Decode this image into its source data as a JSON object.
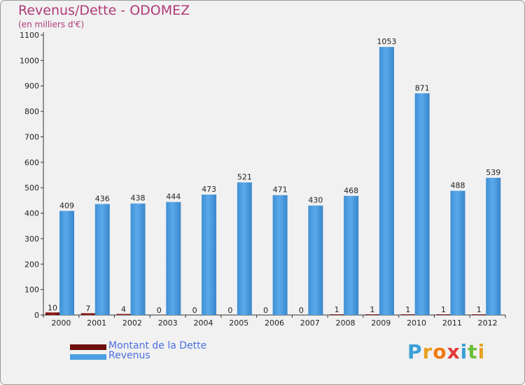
{
  "title": "Revenus/Dette - ODOMEZ",
  "subtitle": "(en milliers d'€)",
  "colors": {
    "debt": "#7a1010",
    "revenue": "#4c9fe0",
    "title": "#b03a78",
    "legend_text": "#4a6ee0"
  },
  "legend": [
    {
      "label": "Montant de la Dette",
      "color": "#6e0d0d"
    },
    {
      "label": "Revenus",
      "color": "#4c9fe0"
    }
  ],
  "logo": {
    "letters": [
      "P",
      "r",
      "o",
      "x",
      "i",
      "t",
      "i"
    ]
  },
  "chart_data": {
    "type": "bar",
    "title": "Revenus/Dette - ODOMEZ",
    "ylabel": "(en milliers d'€)",
    "xlabel": "",
    "ylim": [
      0,
      1100
    ],
    "yticks": [
      0,
      100,
      200,
      300,
      400,
      500,
      600,
      700,
      800,
      900,
      1000,
      1100
    ],
    "grid": false,
    "legend_position": "bottom-left",
    "categories": [
      "2000",
      "2001",
      "2002",
      "2003",
      "2004",
      "2005",
      "2006",
      "2007",
      "2008",
      "2009",
      "2010",
      "2011",
      "2012"
    ],
    "series": [
      {
        "name": "Montant de la Dette",
        "values": [
          10,
          7,
          4,
          0,
          0,
          0,
          0,
          0,
          1,
          1,
          1,
          1,
          1
        ]
      },
      {
        "name": "Revenus",
        "values": [
          409,
          436,
          438,
          444,
          473,
          521,
          471,
          430,
          468,
          1053,
          871,
          488,
          539
        ]
      }
    ]
  }
}
